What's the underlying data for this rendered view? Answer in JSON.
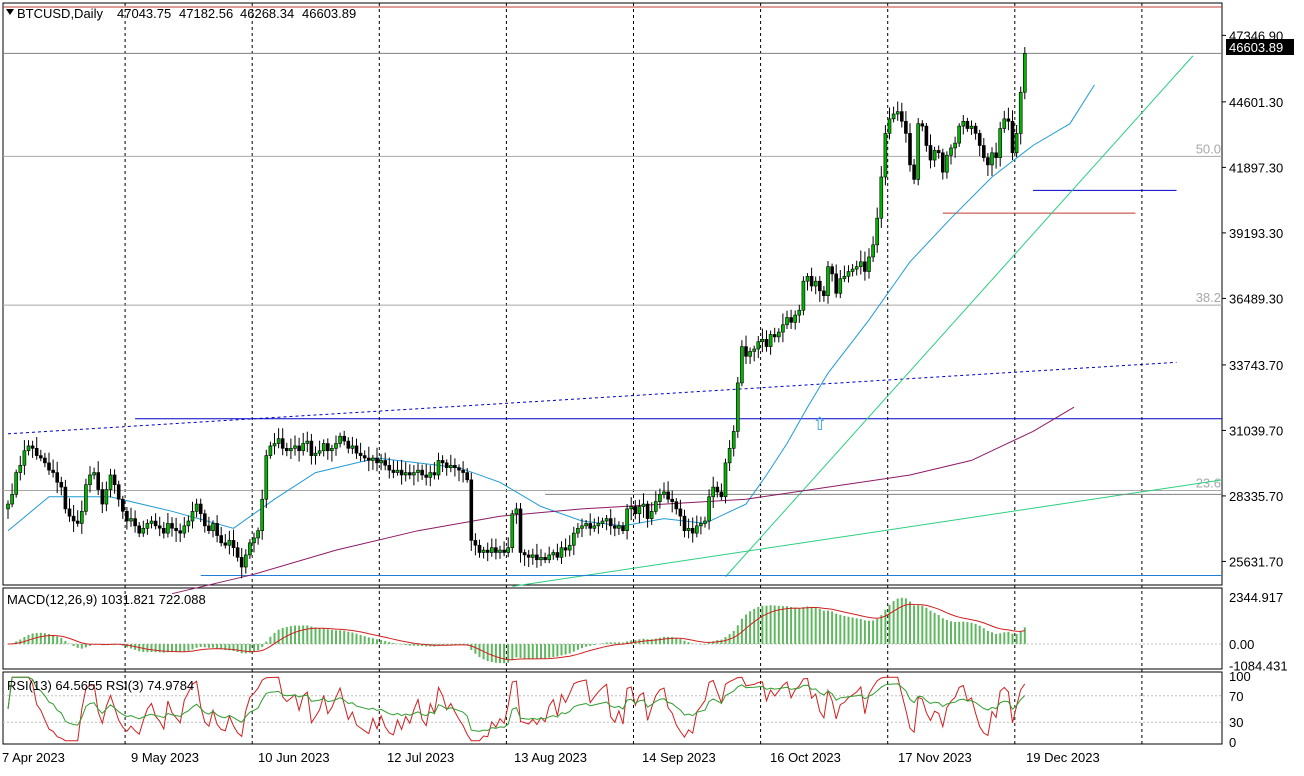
{
  "chart_data": {
    "type": "candlestick",
    "symbol": "BTCUSD,Daily",
    "ohlc_header": {
      "open": "47043.75",
      "high": "47182.56",
      "low": "46268.34",
      "close": "46603.89"
    },
    "last_price": "46603.89",
    "colors": {
      "bull_body": "#00b400",
      "bear_body": "#000000",
      "grid": "#000000",
      "price_line": "#808080",
      "last_price_bg": "#000000",
      "top_line": "#c0392b",
      "ma_fast": "#1f9bd6",
      "ma_slow": "#8e1a66",
      "macd_hist": "#5fb85f",
      "macd_signal": "#d02020",
      "rsi_fast": "#d02020",
      "rsi_slow": "#2e9d2e",
      "trendline_blue": "#0000c8",
      "trendline_green": "#2bcf7f",
      "fibo_line": "#a8a8a8"
    },
    "price_pane": {
      "ylim": [
        24700,
        48600
      ],
      "y_ticks": [
        "47346.90",
        "44601.30",
        "41897.30",
        "39193.30",
        "36489.30",
        "33743.70",
        "31039.70",
        "28335.70",
        "25631.70"
      ],
      "fibo_levels": [
        {
          "label": "50.0",
          "price": 42350
        },
        {
          "label": "38.2",
          "price": 36210
        },
        {
          "label": "23.6",
          "price": 28560
        }
      ]
    },
    "macd": {
      "label": "MACD(12,26,9) 1031.821 722.088",
      "ylim": [
        -1200,
        2700
      ],
      "y_ticks": [
        "2344.917",
        "0.00",
        "-1084.431"
      ],
      "main": 1031.821,
      "signal": 722.088
    },
    "rsi": {
      "label": "RSI(13) 64.5655  RSI(3) 74.9784",
      "ylim": [
        0,
        100
      ],
      "y_ticks": [
        "100",
        "70",
        "30",
        "0"
      ],
      "rsi13": 64.5655,
      "rsi3": 74.9784
    },
    "x_ticks": [
      "7 Apr 2023",
      "9 May 2023",
      "10 Jun 2023",
      "12 Jul 2023",
      "13 Aug 2023",
      "14 Sep 2023",
      "16 Oct 2023",
      "17 Nov 2023",
      "19 Dec 2023"
    ],
    "start_date": "2023-04-07",
    "closes": [
      28000,
      28400,
      29300,
      29600,
      30200,
      30400,
      30300,
      30000,
      29900,
      29700,
      29400,
      29300,
      28900,
      28700,
      27800,
      27500,
      27300,
      27200,
      27700,
      28800,
      29200,
      29300,
      28600,
      28000,
      28600,
      29200,
      28800,
      28200,
      27700,
      27300,
      27400,
      27100,
      26800,
      27000,
      27200,
      27300,
      27100,
      27000,
      26800,
      27200,
      27000,
      26900,
      26800,
      27100,
      27300,
      27700,
      28000,
      27600,
      27100,
      26900,
      27200,
      26700,
      26400,
      26300,
      26500,
      26200,
      25800,
      25400,
      25900,
      26400,
      26600,
      26900,
      28200,
      30000,
      30400,
      30500,
      30700,
      30300,
      30200,
      30300,
      30400,
      30200,
      30500,
      30600,
      30000,
      30100,
      30200,
      30500,
      30200,
      30300,
      30500,
      30800,
      30600,
      30300,
      30400,
      30100,
      30000,
      29900,
      29800,
      29900,
      29700,
      29800,
      29600,
      29400,
      29300,
      29400,
      29200,
      29300,
      29200,
      29300,
      29400,
      29200,
      29100,
      29300,
      29200,
      29800,
      29700,
      29500,
      29600,
      29500,
      29400,
      29300,
      29000,
      26500,
      26300,
      26000,
      26100,
      26000,
      26200,
      26000,
      26100,
      26000,
      26200,
      27600,
      27800,
      26000,
      25900,
      25800,
      25900,
      25700,
      25800,
      25700,
      25900,
      26000,
      25800,
      26200,
      26100,
      26300,
      26800,
      27000,
      27100,
      27200,
      27000,
      27100,
      27200,
      27300,
      27400,
      27100,
      27000,
      27100,
      26900,
      27800,
      27900,
      27600,
      27900,
      28000,
      27400,
      27700,
      28100,
      28400,
      28500,
      28200,
      28100,
      27800,
      27500,
      26900,
      27000,
      26800,
      27100,
      27200,
      27300,
      28300,
      28700,
      28500,
      28300,
      29700,
      30300,
      31000,
      33000,
      34500,
      34100,
      34300,
      34400,
      34700,
      34800,
      34500,
      35000,
      34900,
      35100,
      35400,
      35700,
      35500,
      35800,
      36000,
      37200,
      37400,
      37000,
      37200,
      36800,
      36600,
      37800,
      37500,
      36700,
      37300,
      37400,
      37600,
      37700,
      37800,
      38000,
      37600,
      38200,
      38700,
      39800,
      41500,
      43300,
      43900,
      44100,
      44200,
      43800,
      43300,
      42000,
      41400,
      43700,
      43600,
      42800,
      42200,
      42600,
      42500,
      41700,
      42400,
      42700,
      42900,
      43600,
      43800,
      43500,
      43600,
      43300,
      42800,
      42300,
      42000,
      42500,
      42300,
      43500,
      43900,
      43800,
      42500,
      43300,
      45000,
      46600
    ],
    "ma_fast": [
      [
        0,
        26900
      ],
      [
        10,
        28300
      ],
      [
        25,
        28300
      ],
      [
        40,
        27700
      ],
      [
        55,
        27000
      ],
      [
        65,
        28200
      ],
      [
        75,
        29300
      ],
      [
        90,
        29900
      ],
      [
        100,
        29700
      ],
      [
        110,
        29500
      ],
      [
        120,
        28900
      ],
      [
        130,
        27900
      ],
      [
        140,
        27300
      ],
      [
        150,
        27100
      ],
      [
        160,
        27400
      ],
      [
        165,
        27300
      ],
      [
        170,
        27200
      ],
      [
        175,
        27600
      ],
      [
        180,
        28000
      ],
      [
        185,
        29200
      ],
      [
        190,
        30500
      ],
      [
        195,
        32000
      ],
      [
        200,
        33400
      ],
      [
        210,
        35600
      ],
      [
        220,
        38000
      ],
      [
        230,
        39800
      ],
      [
        240,
        41500
      ],
      [
        250,
        42800
      ],
      [
        259,
        43700
      ],
      [
        265,
        45300
      ]
    ],
    "ma_slow": [
      [
        40,
        24300
      ],
      [
        60,
        25100
      ],
      [
        80,
        26100
      ],
      [
        100,
        26900
      ],
      [
        120,
        27500
      ],
      [
        140,
        27800
      ],
      [
        160,
        28000
      ],
      [
        180,
        28200
      ],
      [
        200,
        28700
      ],
      [
        220,
        29200
      ],
      [
        235,
        29800
      ],
      [
        250,
        31000
      ],
      [
        260,
        32000
      ]
    ],
    "trendlines": [
      {
        "color": "#0000c8",
        "dash": false,
        "from": [
          31,
          31520
        ],
        "to": [
          300,
          31520
        ]
      },
      {
        "color": "#0000c8",
        "dash": false,
        "from": [
          250,
          40950
        ],
        "to": [
          285,
          40950
        ]
      },
      {
        "color": "#c0392b",
        "dash": false,
        "from": [
          228,
          40010
        ],
        "to": [
          275,
          40010
        ]
      },
      {
        "color": "#0000c8",
        "dash": true,
        "from": [
          0,
          30900
        ],
        "to": [
          285,
          33850
        ]
      },
      {
        "color": "#2bcf7f",
        "dash": false,
        "from": [
          123,
          24600
        ],
        "to": [
          300,
          29000
        ]
      },
      {
        "color": "#2bcf7f",
        "dash": false,
        "from": [
          175,
          25000
        ],
        "to": [
          289,
          46500
        ]
      },
      {
        "color": "#1f7fd6",
        "dash": false,
        "from": [
          47,
          25050
        ],
        "to": [
          300,
          25050
        ]
      },
      {
        "color": "#808080",
        "dash": false,
        "from": [
          131,
          28400
        ],
        "to": [
          300,
          28400
        ]
      }
    ],
    "arrow_marker": {
      "index": 198,
      "price": 31050,
      "label": "⇧"
    }
  }
}
